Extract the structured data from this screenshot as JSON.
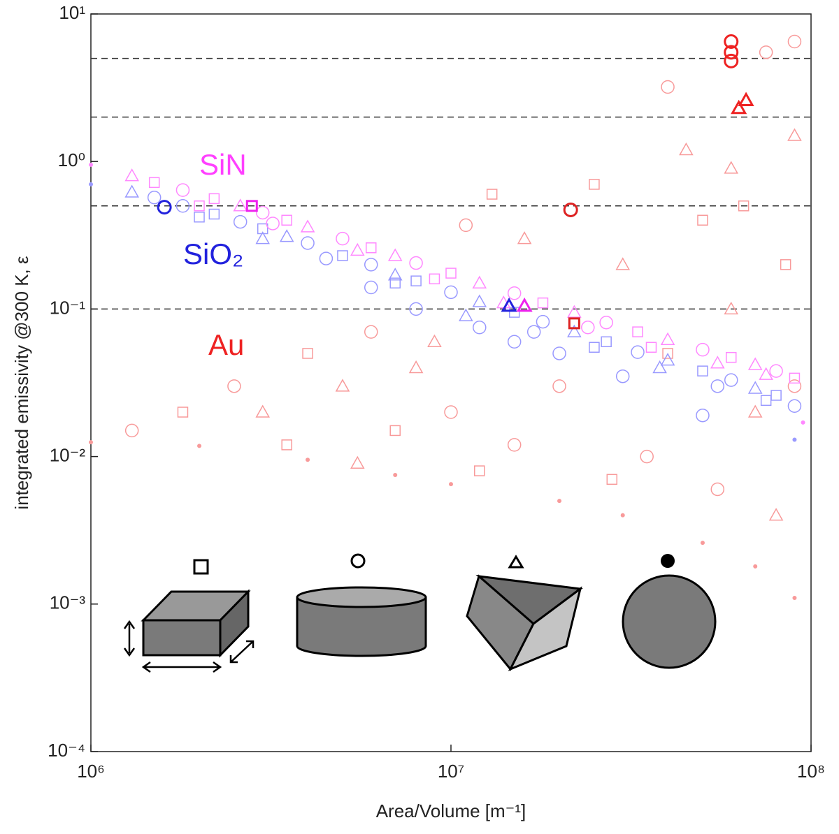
{
  "chart_data": {
    "type": "scatter",
    "xlabel": "Area/Volume [m⁻¹]",
    "ylabel": "integrated emissivity @300 K, ε",
    "xscale": "log",
    "yscale": "log",
    "xlim": [
      1000000,
      100000000
    ],
    "ylim": [
      0.0001,
      10
    ],
    "xticks": [
      {
        "value": 1000000,
        "label": "10⁶"
      },
      {
        "value": 10000000,
        "label": "10⁷"
      },
      {
        "value": 100000000,
        "label": "10⁸"
      }
    ],
    "yticks": [
      {
        "value": 0.0001,
        "label": "10⁻⁴"
      },
      {
        "value": 0.001,
        "label": "10⁻³"
      },
      {
        "value": 0.01,
        "label": "10⁻²"
      },
      {
        "value": 0.1,
        "label": "10⁻¹"
      },
      {
        "value": 1,
        "label": "10⁰"
      },
      {
        "value": 10,
        "label": "10¹"
      }
    ],
    "hlines": [
      5,
      2,
      0.5,
      0.1
    ],
    "series": [
      {
        "name": "Au",
        "color": "#f89a9a",
        "label_color": "#ee2222",
        "x": [
          1000000,
          2000000,
          4000000,
          7000000,
          10000000,
          20000000,
          30000000,
          50000000,
          70000000,
          90000000,
          1300000,
          1800000,
          2500000,
          3000000,
          4000000,
          5000000,
          6000000,
          7000000,
          8000000,
          10000000,
          12000000,
          11000000,
          13000000,
          16000000,
          20000000,
          25000000,
          30000000,
          35000000,
          40000000,
          40000000,
          45000000,
          50000000,
          55000000,
          60000000,
          65000000,
          70000000,
          75000000,
          80000000,
          90000000,
          90000000,
          85000000,
          90000000,
          3500000,
          5500000,
          9000000,
          15000000,
          28000000,
          60000000
        ],
        "values": [
          0.0125,
          0.0118,
          0.0095,
          0.0075,
          0.0065,
          0.005,
          0.004,
          0.0026,
          0.0018,
          0.0011,
          0.015,
          0.02,
          0.03,
          0.02,
          0.05,
          0.03,
          0.07,
          0.015,
          0.04,
          0.02,
          0.008,
          0.37,
          0.6,
          0.3,
          0.03,
          0.7,
          0.2,
          0.01,
          0.05,
          3.2,
          1.2,
          0.4,
          0.006,
          0.1,
          0.5,
          0.02,
          5.5,
          0.004,
          6.5,
          1.5,
          0.2,
          0.03,
          0.012,
          0.009,
          0.06,
          0.012,
          0.007,
          0.9
        ],
        "markers": [
          ".",
          ".",
          ".",
          ".",
          ".",
          ".",
          ".",
          ".",
          ".",
          ".",
          "o",
          "s",
          "o",
          "^",
          "s",
          "^",
          "o",
          "s",
          "^",
          "o",
          "s",
          "o",
          "s",
          "^",
          "o",
          "s",
          "^",
          "o",
          "s",
          "o",
          "^",
          "s",
          "o",
          "^",
          "s",
          "^",
          "o",
          "^",
          "o",
          "^",
          "s",
          "o",
          "s",
          "^",
          "^",
          "o",
          "s",
          "^"
        ]
      },
      {
        "name": "SiO₂",
        "color": "#9999ff",
        "label_color": "#2222dd",
        "x": [
          1000000,
          1300000,
          1500000,
          1800000,
          2200000,
          2600000,
          3000000,
          3500000,
          4000000,
          5000000,
          6000000,
          7000000,
          8000000,
          10000000,
          12000000,
          15000000,
          18000000,
          22000000,
          27000000,
          33000000,
          40000000,
          50000000,
          60000000,
          70000000,
          80000000,
          90000000,
          2000000,
          3000000,
          4500000,
          7000000,
          11000000,
          17000000,
          25000000,
          38000000,
          55000000,
          75000000,
          6000000,
          8000000,
          12000000,
          15000000,
          20000000,
          30000000,
          50000000,
          90000000
        ],
        "values": [
          0.7,
          0.62,
          0.57,
          0.5,
          0.44,
          0.39,
          0.35,
          0.31,
          0.28,
          0.23,
          0.2,
          0.17,
          0.155,
          0.13,
          0.112,
          0.095,
          0.082,
          0.07,
          0.06,
          0.051,
          0.045,
          0.038,
          0.033,
          0.029,
          0.026,
          0.022,
          0.42,
          0.3,
          0.22,
          0.15,
          0.09,
          0.07,
          0.055,
          0.04,
          0.03,
          0.024,
          0.14,
          0.1,
          0.075,
          0.06,
          0.05,
          0.035,
          0.019,
          0.013
        ],
        "markers": [
          ".",
          "^",
          "o",
          "o",
          "s",
          "o",
          "s",
          "^",
          "o",
          "s",
          "o",
          "^",
          "s",
          "o",
          "^",
          "s",
          "o",
          "^",
          "s",
          "o",
          "^",
          "s",
          "o",
          "^",
          "s",
          "o",
          "s",
          "^",
          "o",
          "s",
          "^",
          "o",
          "s",
          "^",
          "o",
          "s",
          "o",
          "o",
          "o",
          "o",
          "o",
          "o",
          "o",
          "."
        ]
      },
      {
        "name": "SiN",
        "color": "#ff88ff",
        "label_color": "#ff40ff",
        "x": [
          1000000,
          1300000,
          1500000,
          1800000,
          2200000,
          2600000,
          3000000,
          3500000,
          4000000,
          5000000,
          6000000,
          7000000,
          8000000,
          10000000,
          12000000,
          15000000,
          18000000,
          22000000,
          27000000,
          33000000,
          40000000,
          50000000,
          60000000,
          70000000,
          80000000,
          90000000,
          2000000,
          3200000,
          5500000,
          9000000,
          14000000,
          24000000,
          36000000,
          55000000,
          75000000,
          95000000
        ],
        "values": [
          0.95,
          0.8,
          0.72,
          0.64,
          0.56,
          0.5,
          0.45,
          0.4,
          0.36,
          0.3,
          0.26,
          0.23,
          0.205,
          0.175,
          0.15,
          0.128,
          0.11,
          0.095,
          0.081,
          0.07,
          0.062,
          0.053,
          0.047,
          0.042,
          0.038,
          0.034,
          0.5,
          0.38,
          0.25,
          0.16,
          0.11,
          0.075,
          0.055,
          0.043,
          0.036,
          0.017
        ],
        "markers": [
          ".",
          "^",
          "s",
          "o",
          "s",
          "^",
          "o",
          "s",
          "^",
          "o",
          "s",
          "^",
          "o",
          "s",
          "^",
          "o",
          "s",
          "^",
          "o",
          "s",
          "^",
          "o",
          "s",
          "^",
          "o",
          "s",
          "s",
          "o",
          "^",
          "s",
          "^",
          "o",
          "s",
          "^",
          "^",
          "."
        ]
      }
    ],
    "highlights": [
      {
        "color": "#2222dd",
        "marker": "o",
        "x": 1600000,
        "value": 0.49
      },
      {
        "color": "#ee22ee",
        "marker": "s",
        "x": 2800000,
        "value": 0.5
      },
      {
        "color": "#dd2222",
        "marker": "o",
        "x": 21500000,
        "value": 0.47
      },
      {
        "color": "#2222dd",
        "marker": "^",
        "x": 14500000,
        "value": 0.105
      },
      {
        "color": "#ee22ee",
        "marker": "^",
        "x": 16000000,
        "value": 0.105
      },
      {
        "color": "#dd2222",
        "marker": "s",
        "x": 22000000,
        "value": 0.08
      },
      {
        "color": "#ee2222",
        "marker": "o",
        "x": 60000000,
        "value": 6.5
      },
      {
        "color": "#ee2222",
        "marker": "o",
        "x": 60000000,
        "value": 5.5
      },
      {
        "color": "#ee2222",
        "marker": "o",
        "x": 60000000,
        "value": 4.8
      },
      {
        "color": "#ee2222",
        "marker": "^",
        "x": 63000000,
        "value": 2.3
      },
      {
        "color": "#ee2222",
        "marker": "^",
        "x": 66000000,
        "value": 2.6
      }
    ]
  }
}
